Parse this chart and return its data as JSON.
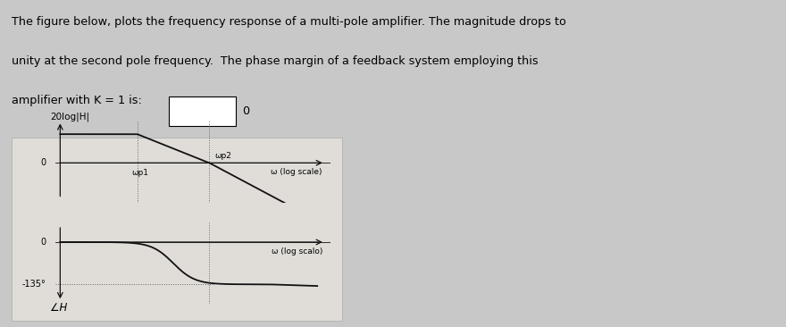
{
  "background_color": "#c8c8c8",
  "panel_bg": "#e8e6e2",
  "fig_width": 8.8,
  "fig_height": 3.66,
  "text_line1": "The figure below, plots the frequency response of a multi-pole amplifier. The magnitude drops to",
  "text_line2": "unity at the second pole frequency.  The phase margin of a feedback system employing this",
  "text_line3": "amplifier with K = 1 is:",
  "answer_zero": "0",
  "mag_ylabel": "20log|H|",
  "phase_ylabel": "∠H",
  "mag_xlabel": "ω (log scale)",
  "phase_xlabel": "ω (log scalo)",
  "wp1_label": "ωp1",
  "wp2_label": "ωp2",
  "phase_level": "-135°",
  "log_wp1": 0.3,
  "log_wp2": 0.58,
  "plot_bg": "#ffffff",
  "panel_plot_bg": "#e0ddd8",
  "line_color": "#111111",
  "dotted_color": "#666666",
  "font_size_title": 9.2,
  "font_size_labels": 7.0,
  "font_size_axis_label": 6.8
}
